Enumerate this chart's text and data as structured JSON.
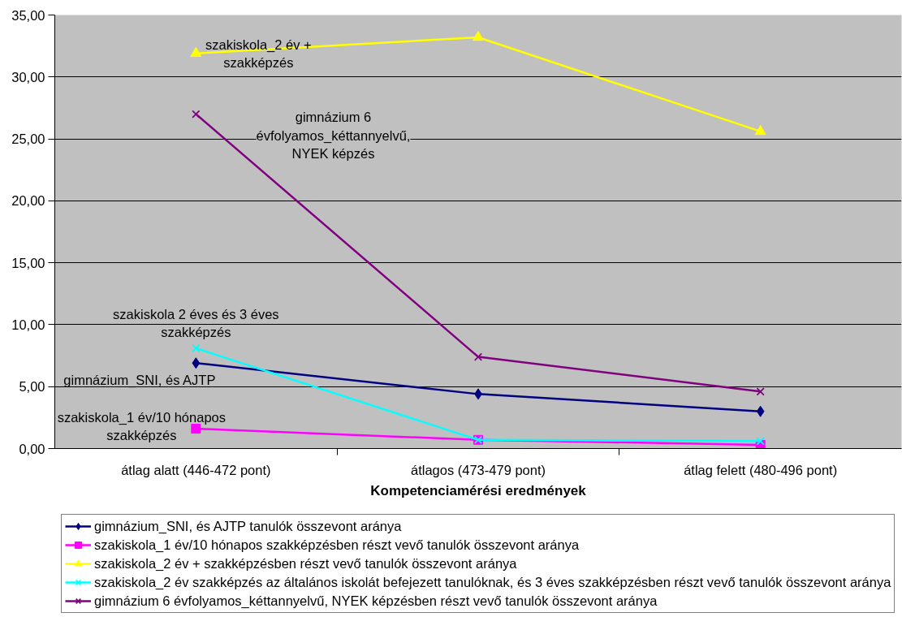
{
  "chart_data": {
    "type": "line",
    "xlabel": "Kompetenciamérési eredmények",
    "categories": [
      "átlag alatt (446-472 pont)",
      "átlagos (473-479 pont)",
      "átlag felett (480-496 pont)"
    ],
    "series": [
      {
        "name": "gimnázium_SNI, és AJTP tanulók összevont aránya",
        "color": "#000080",
        "marker": "diamond",
        "values": [
          6.9,
          4.4,
          3.0
        ]
      },
      {
        "name": "szakiskola_1 év/10 hónapos szakképzésben részt vevő tanulók összevont aránya",
        "color": "#ff00ff",
        "marker": "square",
        "values": [
          1.6,
          0.7,
          0.3
        ]
      },
      {
        "name": "szakiskola_2 év + szakképzésben részt vevő tanulók összevont aránya",
        "color": "#ffff00",
        "marker": "triangle",
        "values": [
          31.9,
          33.2,
          25.6
        ]
      },
      {
        "name": "szakiskola_2 év szakképzés az általános iskolát befejezett tanulóknak, és 3 éves szakképzésben részt vevő tanulók összevont aránya",
        "color": "#00ffff",
        "marker": "cross",
        "values": [
          8.1,
          0.7,
          0.6
        ]
      },
      {
        "name": "gimnázium 6 évfolyamos_kéttannyelvű, NYEK képzésben részt vevő tanulók összevont aránya",
        "color": "#800080",
        "marker": "cross",
        "values": [
          27.0,
          7.4,
          4.6
        ]
      }
    ],
    "ylim": [
      0,
      35
    ],
    "yticks": [
      {
        "value": 0,
        "label": "0,00"
      },
      {
        "value": 5,
        "label": "5,00"
      },
      {
        "value": 10,
        "label": "10,00"
      },
      {
        "value": 15,
        "label": "15,00"
      },
      {
        "value": 20,
        "label": "20,00"
      },
      {
        "value": 25,
        "label": "25,00"
      },
      {
        "value": 30,
        "label": "30,00"
      },
      {
        "value": 35,
        "label": "35,00"
      }
    ],
    "grid": "y",
    "legend": "bottom",
    "line_style": "solid",
    "annotations": [
      {
        "text": "szakiskola_2 év + szakképzés",
        "x": "átlag alatt (446-472 pont)",
        "y": 31.9
      },
      "gimnázium 6 évfolyamos_kéttannyelvű, NYEK képzés",
      {
        "text": "szakiskola 2 éves és 3 éves szakképzés",
        "x": "átlag alatt (446-472 pont)",
        "y": 8.1
      },
      {
        "text": "gimnázium_SNI, és AJTP",
        "x": "átlag alatt (446-472 pont)",
        "y": 6.9
      },
      {
        "text": "szakiskola_1 év/10 hónapos szakképzés",
        "x": "átlag alatt (446-472 pont)",
        "y": 1.6
      }
    ]
  }
}
